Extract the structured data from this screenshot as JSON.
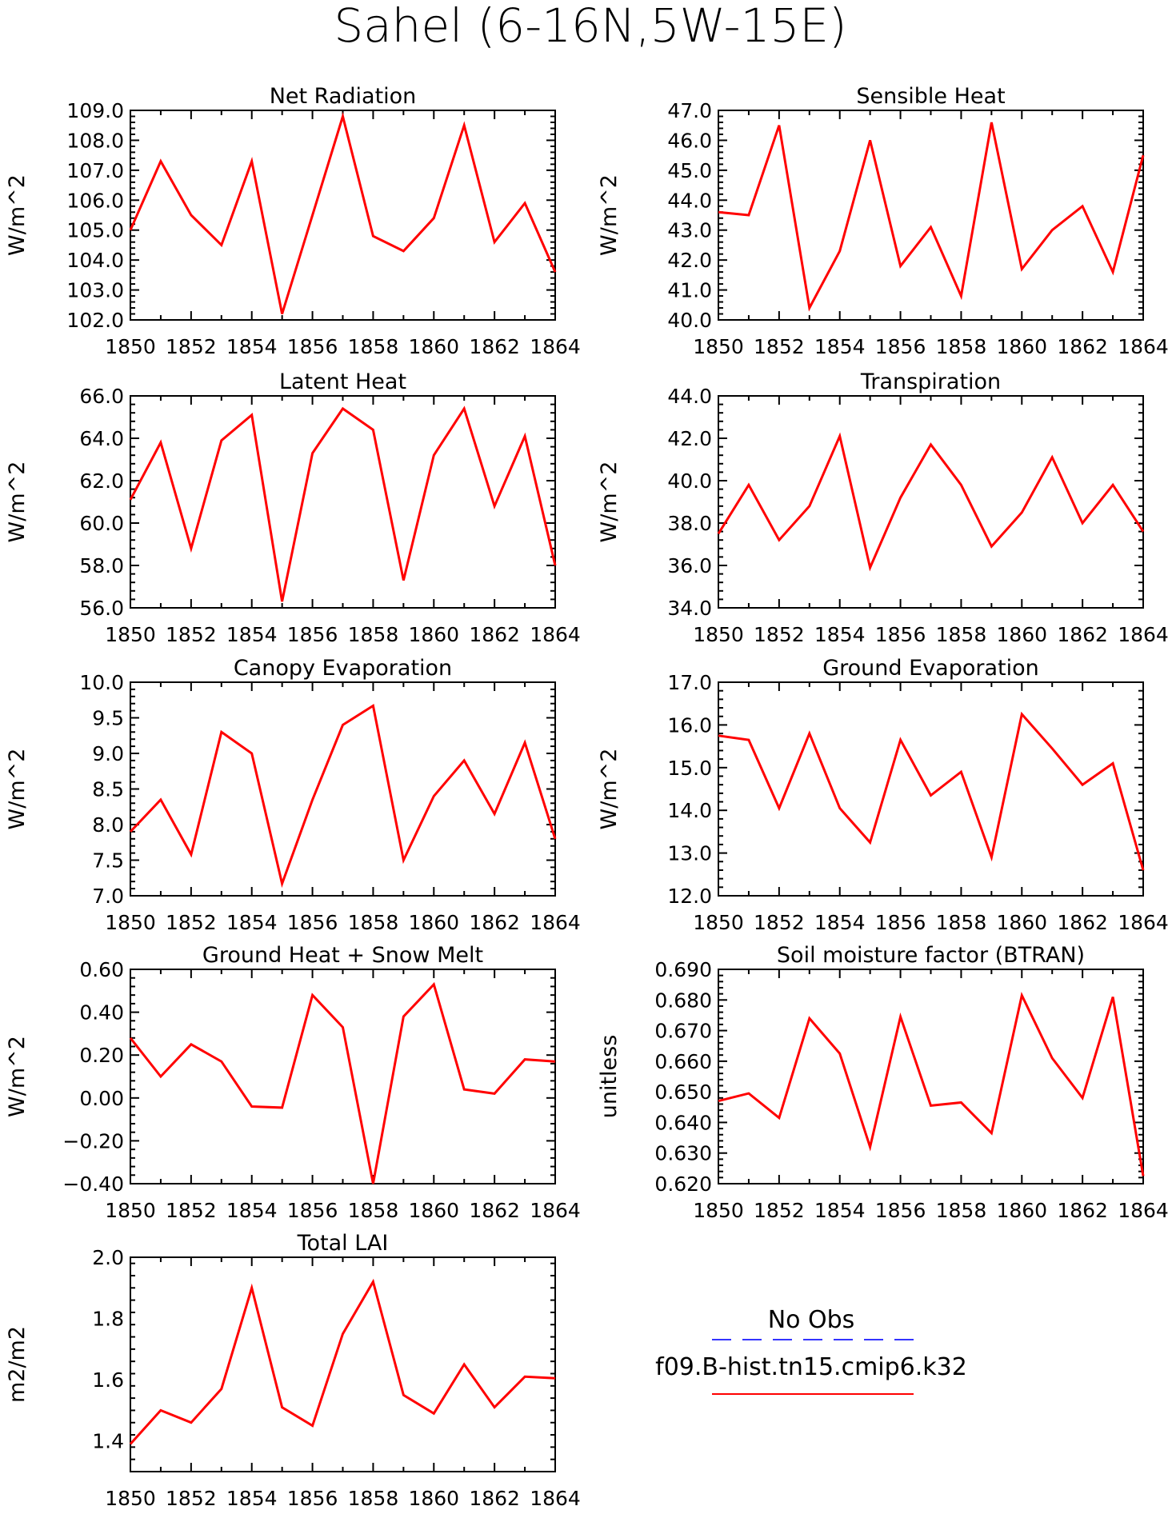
{
  "figure": {
    "title": "Sahel (6-16N,5W-15E)"
  },
  "legend": {
    "items": [
      {
        "label": "No Obs",
        "color": "#3333ff",
        "style": "dashed"
      },
      {
        "label": "f09.B-hist.tn15.cmip6.k32",
        "color": "#ff0000",
        "style": "solid"
      }
    ]
  },
  "chart_data": [
    {
      "type": "line",
      "title": "Net Radiation",
      "ylabel": "W/m^2",
      "xlabel": "",
      "xlim": [
        1850,
        1864
      ],
      "ylim": [
        102.0,
        109.0
      ],
      "xticks": [
        "1850",
        "1852",
        "1854",
        "1856",
        "1858",
        "1860",
        "1862",
        "1864"
      ],
      "yticks": [
        "102.0",
        "103.0",
        "104.0",
        "105.0",
        "106.0",
        "107.0",
        "108.0",
        "109.0"
      ],
      "grid": false,
      "series": [
        {
          "name": "f09.B-hist.tn15.cmip6.k32",
          "color": "#ff0000",
          "x": [
            1850,
            1851,
            1852,
            1853,
            1854,
            1855,
            1856,
            1857,
            1858,
            1859,
            1860,
            1861,
            1862,
            1863,
            1864
          ],
          "y": [
            105.0,
            107.3,
            105.5,
            104.5,
            107.3,
            102.2,
            105.5,
            108.8,
            104.8,
            104.3,
            105.4,
            108.5,
            104.6,
            105.9,
            103.6
          ]
        }
      ]
    },
    {
      "type": "line",
      "title": "Sensible Heat",
      "ylabel": "W/m^2",
      "xlabel": "",
      "xlim": [
        1850,
        1864
      ],
      "ylim": [
        40.0,
        47.0
      ],
      "xticks": [
        "1850",
        "1852",
        "1854",
        "1856",
        "1858",
        "1860",
        "1862",
        "1864"
      ],
      "yticks": [
        "40.0",
        "41.0",
        "42.0",
        "43.0",
        "44.0",
        "45.0",
        "46.0",
        "47.0"
      ],
      "grid": false,
      "series": [
        {
          "name": "f09.B-hist.tn15.cmip6.k32",
          "color": "#ff0000",
          "x": [
            1850,
            1851,
            1852,
            1853,
            1854,
            1855,
            1856,
            1857,
            1858,
            1859,
            1860,
            1861,
            1862,
            1863,
            1864
          ],
          "y": [
            43.6,
            43.5,
            46.5,
            40.4,
            42.3,
            46.0,
            41.8,
            43.1,
            40.8,
            46.6,
            41.7,
            43.0,
            43.8,
            41.6,
            45.5
          ]
        }
      ]
    },
    {
      "type": "line",
      "title": "Latent Heat",
      "ylabel": "W/m^2",
      "xlabel": "",
      "xlim": [
        1850,
        1864
      ],
      "ylim": [
        56.0,
        66.0
      ],
      "xticks": [
        "1850",
        "1852",
        "1854",
        "1856",
        "1858",
        "1860",
        "1862",
        "1864"
      ],
      "yticks": [
        "56.0",
        "58.0",
        "60.0",
        "62.0",
        "64.0",
        "66.0"
      ],
      "grid": false,
      "series": [
        {
          "name": "f09.B-hist.tn15.cmip6.k32",
          "color": "#ff0000",
          "x": [
            1850,
            1851,
            1852,
            1853,
            1854,
            1855,
            1856,
            1857,
            1858,
            1859,
            1860,
            1861,
            1862,
            1863,
            1864
          ],
          "y": [
            61.1,
            63.8,
            58.8,
            63.9,
            65.1,
            56.3,
            63.3,
            65.4,
            64.4,
            57.3,
            63.2,
            65.4,
            60.8,
            64.1,
            58.0
          ]
        }
      ]
    },
    {
      "type": "line",
      "title": "Transpiration",
      "ylabel": "W/m^2",
      "xlabel": "",
      "xlim": [
        1850,
        1864
      ],
      "ylim": [
        34.0,
        44.0
      ],
      "xticks": [
        "1850",
        "1852",
        "1854",
        "1856",
        "1858",
        "1860",
        "1862",
        "1864"
      ],
      "yticks": [
        "34.0",
        "36.0",
        "38.0",
        "40.0",
        "42.0",
        "44.0"
      ],
      "grid": false,
      "series": [
        {
          "name": "f09.B-hist.tn15.cmip6.k32",
          "color": "#ff0000",
          "x": [
            1850,
            1851,
            1852,
            1853,
            1854,
            1855,
            1856,
            1857,
            1858,
            1859,
            1860,
            1861,
            1862,
            1863,
            1864
          ],
          "y": [
            37.5,
            39.8,
            37.2,
            38.8,
            42.1,
            35.9,
            39.2,
            41.7,
            39.8,
            36.9,
            38.5,
            41.1,
            38.0,
            39.8,
            37.6
          ]
        }
      ]
    },
    {
      "type": "line",
      "title": "Canopy Evaporation",
      "ylabel": "W/m^2",
      "xlabel": "",
      "xlim": [
        1850,
        1864
      ],
      "ylim": [
        7.0,
        10.0
      ],
      "xticks": [
        "1850",
        "1852",
        "1854",
        "1856",
        "1858",
        "1860",
        "1862",
        "1864"
      ],
      "yticks": [
        "7.0",
        "7.5",
        "8.0",
        "8.5",
        "9.0",
        "9.5",
        "10.0"
      ],
      "grid": false,
      "series": [
        {
          "name": "f09.B-hist.tn15.cmip6.k32",
          "color": "#ff0000",
          "x": [
            1850,
            1851,
            1852,
            1853,
            1854,
            1855,
            1856,
            1857,
            1858,
            1859,
            1860,
            1861,
            1862,
            1863,
            1864
          ],
          "y": [
            7.9,
            8.35,
            7.58,
            9.3,
            9.0,
            7.17,
            8.35,
            9.4,
            9.67,
            7.5,
            8.4,
            8.9,
            8.15,
            9.15,
            7.8
          ]
        }
      ]
    },
    {
      "type": "line",
      "title": "Ground Evaporation",
      "ylabel": "W/m^2",
      "xlabel": "",
      "xlim": [
        1850,
        1864
      ],
      "ylim": [
        12.0,
        17.0
      ],
      "xticks": [
        "1850",
        "1852",
        "1854",
        "1856",
        "1858",
        "1860",
        "1862",
        "1864"
      ],
      "yticks": [
        "12.0",
        "13.0",
        "14.0",
        "15.0",
        "16.0",
        "17.0"
      ],
      "grid": false,
      "series": [
        {
          "name": "f09.B-hist.tn15.cmip6.k32",
          "color": "#ff0000",
          "x": [
            1850,
            1851,
            1852,
            1853,
            1854,
            1855,
            1856,
            1857,
            1858,
            1859,
            1860,
            1861,
            1862,
            1863,
            1864
          ],
          "y": [
            15.75,
            15.65,
            14.05,
            15.8,
            14.05,
            13.25,
            15.65,
            14.35,
            14.9,
            12.9,
            16.25,
            15.45,
            14.6,
            15.1,
            12.6
          ]
        }
      ]
    },
    {
      "type": "line",
      "title": "Ground Heat + Snow Melt",
      "ylabel": "W/m^2",
      "xlabel": "",
      "xlim": [
        1850,
        1864
      ],
      "ylim": [
        -0.4,
        0.6
      ],
      "xticks": [
        "1850",
        "1852",
        "1854",
        "1856",
        "1858",
        "1860",
        "1862",
        "1864"
      ],
      "yticks": [
        "-0.40",
        "-0.20",
        "0.00",
        "0.20",
        "0.40",
        "0.60"
      ],
      "grid": false,
      "series": [
        {
          "name": "f09.B-hist.tn15.cmip6.k32",
          "color": "#ff0000",
          "x": [
            1850,
            1851,
            1852,
            1853,
            1854,
            1855,
            1856,
            1857,
            1858,
            1859,
            1860,
            1861,
            1862,
            1863,
            1864
          ],
          "y": [
            0.28,
            0.1,
            0.25,
            0.17,
            -0.04,
            -0.045,
            0.48,
            0.33,
            -0.4,
            0.38,
            0.53,
            0.04,
            0.02,
            0.18,
            0.17
          ]
        }
      ]
    },
    {
      "type": "line",
      "title": "Soil moisture factor (BTRAN)",
      "ylabel": "unitless",
      "xlabel": "",
      "xlim": [
        1850,
        1864
      ],
      "ylim": [
        0.62,
        0.69
      ],
      "xticks": [
        "1850",
        "1852",
        "1854",
        "1856",
        "1858",
        "1860",
        "1862",
        "1864"
      ],
      "yticks": [
        "0.620",
        "0.630",
        "0.640",
        "0.650",
        "0.660",
        "0.670",
        "0.680",
        "0.690"
      ],
      "grid": false,
      "series": [
        {
          "name": "f09.B-hist.tn15.cmip6.k32",
          "color": "#ff0000",
          "x": [
            1850,
            1851,
            1852,
            1853,
            1854,
            1855,
            1856,
            1857,
            1858,
            1859,
            1860,
            1861,
            1862,
            1863,
            1864
          ],
          "y": [
            0.647,
            0.6495,
            0.6415,
            0.674,
            0.6625,
            0.632,
            0.6745,
            0.6455,
            0.6465,
            0.6365,
            0.6815,
            0.661,
            0.648,
            0.681,
            0.6225
          ]
        }
      ]
    },
    {
      "type": "line",
      "title": "Total LAI",
      "ylabel": "m2/m2",
      "xlabel": "",
      "xlim": [
        1850,
        1864
      ],
      "ylim": [
        1.3,
        2.0
      ],
      "xticks": [
        "1850",
        "1852",
        "1854",
        "1856",
        "1858",
        "1860",
        "1862",
        "1864"
      ],
      "yticks": [
        "1.4",
        "1.6",
        "1.8",
        "2.0"
      ],
      "grid": false,
      "series": [
        {
          "name": "f09.B-hist.tn15.cmip6.k32",
          "color": "#ff0000",
          "x": [
            1850,
            1851,
            1852,
            1853,
            1854,
            1855,
            1856,
            1857,
            1858,
            1859,
            1860,
            1861,
            1862,
            1863,
            1864
          ],
          "y": [
            1.39,
            1.5,
            1.46,
            1.57,
            1.9,
            1.51,
            1.45,
            1.75,
            1.92,
            1.55,
            1.49,
            1.65,
            1.51,
            1.61,
            1.605
          ]
        }
      ]
    }
  ]
}
